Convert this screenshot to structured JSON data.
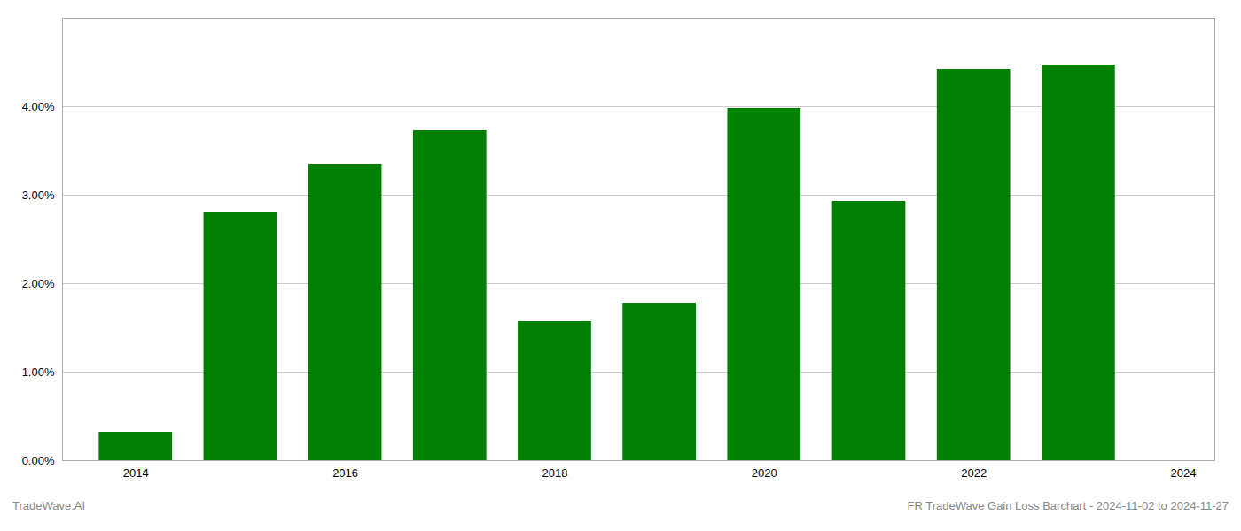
{
  "chart_data": {
    "type": "bar",
    "x": [
      2014,
      2015,
      2016,
      2017,
      2018,
      2019,
      2020,
      2021,
      2022,
      2023
    ],
    "values": [
      0.0032,
      0.028,
      0.0335,
      0.0373,
      0.0157,
      0.0178,
      0.0398,
      0.0293,
      0.0442,
      0.0447
    ],
    "color": "#008000",
    "xlim": [
      2013.3,
      2024.3
    ],
    "xticks": [
      2014,
      2016,
      2018,
      2020,
      2022,
      2024
    ],
    "ylim": [
      0.0,
      0.05
    ],
    "yticks": [
      {
        "value": 0.0,
        "label": "0.00%"
      },
      {
        "value": 0.01,
        "label": "1.00%"
      },
      {
        "value": 0.02,
        "label": "2.00%"
      },
      {
        "value": 0.03,
        "label": "3.00%"
      },
      {
        "value": 0.04,
        "label": "4.00%"
      }
    ],
    "grid": true,
    "annotations": [
      "TradeWave.AI",
      "FR TradeWave Gain Loss Barchart - 2024-11-02 to 2024-11-27"
    ]
  }
}
